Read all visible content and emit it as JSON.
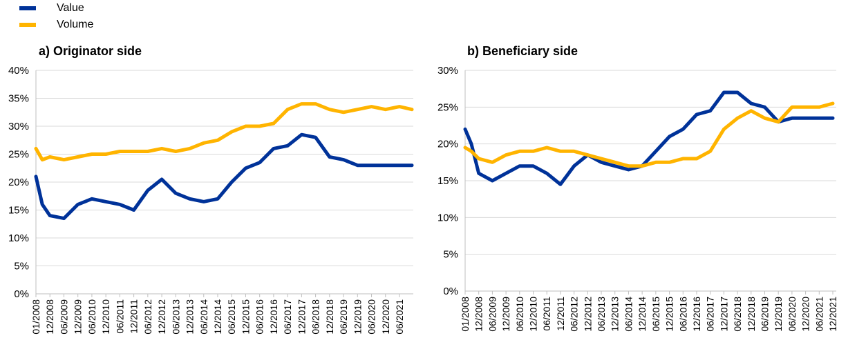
{
  "legend": {
    "items": [
      {
        "label": "Value",
        "color": "#003299"
      },
      {
        "label": "Volume",
        "color": "#FFB400"
      }
    ]
  },
  "chart_data": [
    {
      "type": "line",
      "title": "a) Originator side",
      "ylim": [
        0,
        40
      ],
      "y_ticks": [
        0,
        5,
        10,
        15,
        20,
        25,
        30,
        35,
        40
      ],
      "y_tick_labels": [
        "0%",
        "5%",
        "10%",
        "15%",
        "20%",
        "25%",
        "30%",
        "35%",
        "40%"
      ],
      "x_tick_labels": [
        "01/2008",
        "12/2008",
        "06/2009",
        "12/2009",
        "06/2010",
        "12/2010",
        "06/2011",
        "12/2011",
        "06/2012",
        "12/2012",
        "06/2013",
        "12/2013",
        "06/2014",
        "12/2014",
        "06/2015",
        "12/2015",
        "06/2016",
        "12/2016",
        "06/2017",
        "12/2017",
        "06/2018",
        "12/2018",
        "06/2019",
        "12/2019",
        "06/2020",
        "12/2020",
        "06/2021"
      ],
      "grid": true,
      "series": [
        {
          "name": "Value",
          "color": "#003299",
          "x": [
            "2008-01",
            "2008-06",
            "2008-12",
            "2009-06",
            "2009-12",
            "2010-06",
            "2010-12",
            "2011-06",
            "2011-12",
            "2012-06",
            "2012-12",
            "2013-06",
            "2013-12",
            "2014-06",
            "2014-12",
            "2015-06",
            "2015-12",
            "2016-06",
            "2016-12",
            "2017-06",
            "2017-12",
            "2018-06",
            "2018-12",
            "2019-06",
            "2019-12",
            "2020-06",
            "2020-12",
            "2021-06",
            "2021-12"
          ],
          "values": [
            21,
            16,
            14,
            13.5,
            16,
            17,
            16.5,
            16,
            15,
            18.5,
            20.5,
            18,
            17,
            16.5,
            17,
            20,
            22.5,
            23.5,
            26,
            26.5,
            28.5,
            28,
            24.5,
            24,
            23,
            23,
            23,
            23,
            23
          ]
        },
        {
          "name": "Volume",
          "color": "#FFB400",
          "x": [
            "2008-01",
            "2008-06",
            "2008-12",
            "2009-06",
            "2009-12",
            "2010-06",
            "2010-12",
            "2011-06",
            "2011-12",
            "2012-06",
            "2012-12",
            "2013-06",
            "2013-12",
            "2014-06",
            "2014-12",
            "2015-06",
            "2015-12",
            "2016-06",
            "2016-12",
            "2017-06",
            "2017-12",
            "2018-06",
            "2018-12",
            "2019-06",
            "2019-12",
            "2020-06",
            "2020-12",
            "2021-06",
            "2021-12"
          ],
          "values": [
            26,
            24,
            24.5,
            24,
            24.5,
            25,
            25,
            25.5,
            25.5,
            25.5,
            26,
            25.5,
            26,
            27,
            27.5,
            29,
            30,
            30,
            30.5,
            33,
            34,
            34,
            33,
            32.5,
            33,
            33.5,
            33,
            33.5,
            33
          ]
        }
      ]
    },
    {
      "type": "line",
      "title": "b) Beneficiary side",
      "ylim": [
        0,
        30
      ],
      "y_ticks": [
        0,
        5,
        10,
        15,
        20,
        25,
        30
      ],
      "y_tick_labels": [
        "0%",
        "5%",
        "10%",
        "15%",
        "20%",
        "25%",
        "30%"
      ],
      "x_tick_labels": [
        "01/2008",
        "12/2008",
        "06/2009",
        "12/2009",
        "06/2010",
        "12/2010",
        "06/2011",
        "12/2011",
        "06/2012",
        "12/2012",
        "06/2013",
        "12/2013",
        "06/2014",
        "12/2014",
        "06/2015",
        "12/2015",
        "06/2016",
        "12/2016",
        "06/2017",
        "12/2017",
        "06/2018",
        "12/2018",
        "06/2019",
        "12/2019",
        "06/2020",
        "12/2020",
        "06/2021",
        "12/2021"
      ],
      "grid": true,
      "series": [
        {
          "name": "Value",
          "color": "#003299",
          "x": [
            "2008-01",
            "2008-06",
            "2008-12",
            "2009-06",
            "2009-12",
            "2010-06",
            "2010-12",
            "2011-06",
            "2011-12",
            "2012-06",
            "2012-12",
            "2013-06",
            "2013-12",
            "2014-06",
            "2014-12",
            "2015-06",
            "2015-12",
            "2016-06",
            "2016-12",
            "2017-06",
            "2017-12",
            "2018-06",
            "2018-12",
            "2019-06",
            "2019-12",
            "2020-06",
            "2020-12",
            "2021-06",
            "2021-12"
          ],
          "values": [
            22,
            20,
            16,
            15,
            16,
            17,
            17,
            16,
            14.5,
            17,
            18.5,
            17.5,
            17,
            16.5,
            17,
            19,
            21,
            22,
            24,
            24.5,
            27,
            27,
            25.5,
            25,
            23,
            23.5,
            23.5,
            23.5,
            23.5
          ]
        },
        {
          "name": "Volume",
          "color": "#FFB400",
          "x": [
            "2008-01",
            "2008-06",
            "2008-12",
            "2009-06",
            "2009-12",
            "2010-06",
            "2010-12",
            "2011-06",
            "2011-12",
            "2012-06",
            "2012-12",
            "2013-06",
            "2013-12",
            "2014-06",
            "2014-12",
            "2015-06",
            "2015-12",
            "2016-06",
            "2016-12",
            "2017-06",
            "2017-12",
            "2018-06",
            "2018-12",
            "2019-06",
            "2019-12",
            "2020-06",
            "2020-12",
            "2021-06",
            "2021-12"
          ],
          "values": [
            19.5,
            19,
            18,
            17.5,
            18.5,
            19,
            19,
            19.5,
            19,
            19,
            18.5,
            18,
            17.5,
            17,
            17,
            17.5,
            17.5,
            18,
            18,
            19,
            22,
            23.5,
            24.5,
            23.5,
            23,
            25,
            25,
            25,
            25.5
          ]
        }
      ]
    }
  ]
}
